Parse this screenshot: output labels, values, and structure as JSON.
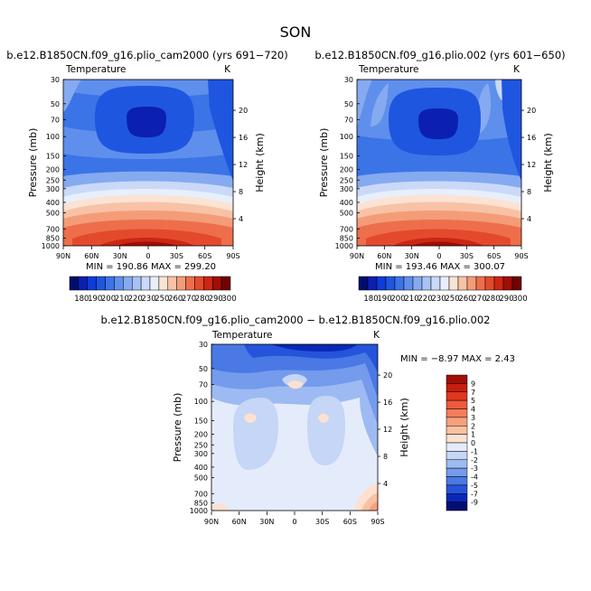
{
  "figure": {
    "title": "SON"
  },
  "colorbar_top": {
    "labels": [
      "180",
      "190",
      "200",
      "210",
      "220",
      "230",
      "250",
      "260",
      "270",
      "280",
      "290",
      "300"
    ],
    "colors": [
      "#010d6e",
      "#0b20b0",
      "#0f3cd8",
      "#1f56e0",
      "#3b74e6",
      "#5f8fec",
      "#86aaf0",
      "#a8c2f4",
      "#cad9f8",
      "#e8effc",
      "#fbe3d4",
      "#f8c2a6",
      "#f49c78",
      "#ee6e4c",
      "#e34a2c",
      "#cc2614",
      "#a10e06",
      "#6e0300"
    ]
  },
  "colorbar_diff": {
    "labels": [
      "9",
      "7",
      "5",
      "4",
      "3",
      "2",
      "1",
      "0",
      "-1",
      "-2",
      "-3",
      "-4",
      "-5",
      "-7",
      "-9"
    ],
    "colors": [
      "#a10e06",
      "#c81e0e",
      "#e0371e",
      "#ee5a3c",
      "#f47e5c",
      "#f7a07e",
      "#fac0a2",
      "#fde0cf",
      "#e4ecfb",
      "#c5d6f6",
      "#9dbaf2",
      "#749bec",
      "#4a78e4",
      "#2553da",
      "#0a28b8",
      "#030e72"
    ]
  },
  "chart_data": [
    {
      "type": "heatmap",
      "title": "b.e12.B1850CN.f09_g16.plio_cam2000 (yrs 691−720)",
      "subtitle": "Temperature",
      "units": "K",
      "xlabel": "",
      "ylabel": "Pressure (mb)",
      "y2label": "Height (km)",
      "x_ticks": [
        "90N",
        "60N",
        "30N",
        "0",
        "30S",
        "60S",
        "90S"
      ],
      "y_ticks": [
        "30",
        "50",
        "70",
        "100",
        "150",
        "200",
        "250",
        "300",
        "400",
        "500",
        "700",
        "850",
        "1000"
      ],
      "y2_ticks": [
        "20",
        "16",
        "12",
        "8",
        "4"
      ],
      "min_text": "MIN = 190.86",
      "max_text": "MAX = 299.20",
      "min": 190.86,
      "max": 299.2
    },
    {
      "type": "heatmap",
      "title": "b.e12.B1850CN.f09_g16.plio.002 (yrs 601−650)",
      "subtitle": "Temperature",
      "units": "K",
      "xlabel": "",
      "ylabel": "Pressure (mb)",
      "y2label": "Height (km)",
      "x_ticks": [
        "90N",
        "60N",
        "30N",
        "0",
        "30S",
        "60S",
        "90S"
      ],
      "y_ticks": [
        "30",
        "50",
        "70",
        "100",
        "150",
        "200",
        "250",
        "300",
        "400",
        "500",
        "700",
        "850",
        "1000"
      ],
      "y2_ticks": [
        "20",
        "16",
        "12",
        "8",
        "4"
      ],
      "min_text": "MIN = 193.46",
      "max_text": "MAX = 300.07",
      "min": 193.46,
      "max": 300.07
    },
    {
      "type": "heatmap",
      "title": "b.e12.B1850CN.f09_g16.plio_cam2000 − b.e12.B1850CN.f09_g16.plio.002",
      "subtitle": "Temperature",
      "units": "K",
      "xlabel": "",
      "ylabel": "Pressure (mb)",
      "y2label": "Height (km)",
      "x_ticks": [
        "90N",
        "60N",
        "30N",
        "0",
        "30S",
        "60S",
        "90S"
      ],
      "y_ticks": [
        "30",
        "50",
        "70",
        "100",
        "150",
        "200",
        "250",
        "300",
        "400",
        "500",
        "700",
        "850",
        "1000"
      ],
      "y2_ticks": [
        "20",
        "16",
        "12",
        "8",
        "4"
      ],
      "minmax_text": "MIN = −8.97 MAX = 2.43",
      "min": -8.97,
      "max": 2.43
    }
  ]
}
